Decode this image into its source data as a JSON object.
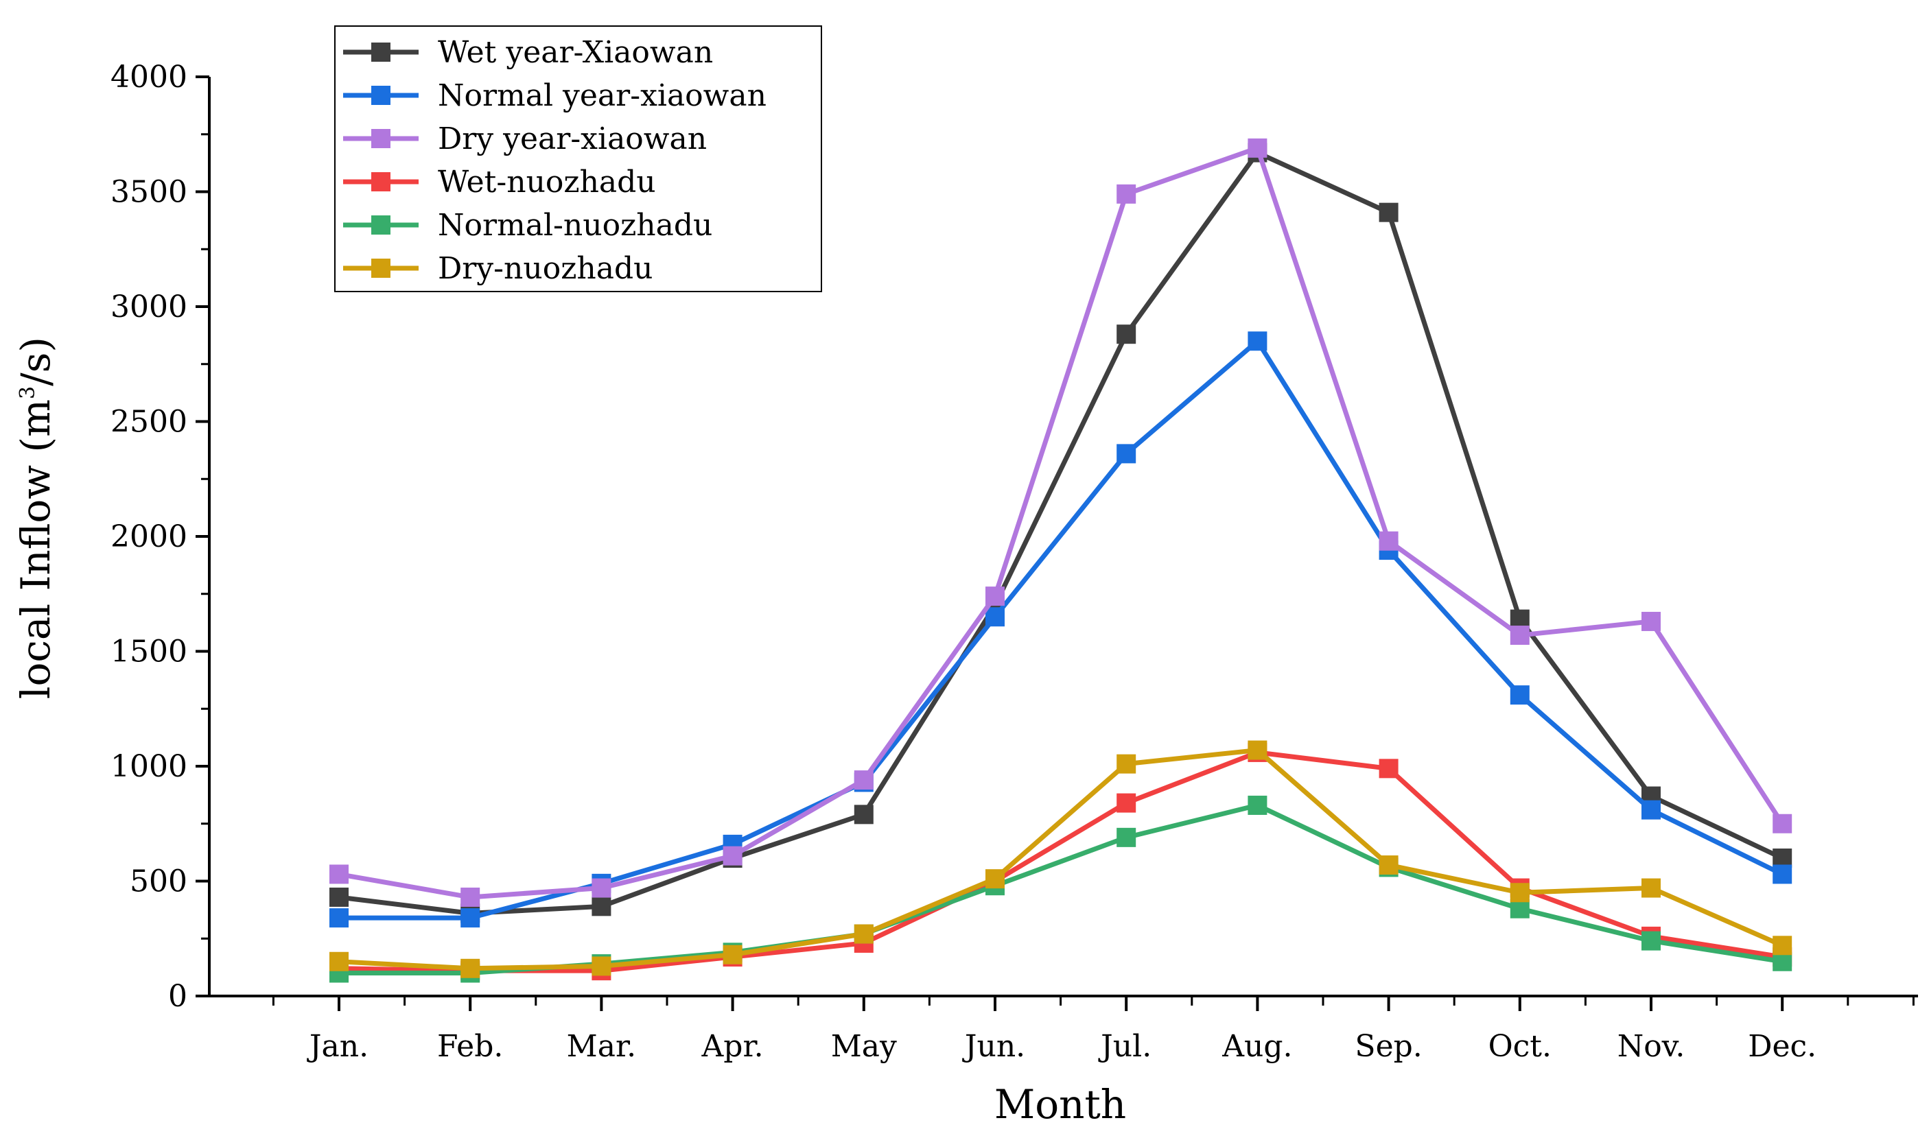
{
  "chart_data": {
    "type": "line",
    "title": "",
    "xlabel": "Month",
    "ylabel": "local Inflow (m",
    "ylabel_sup": "3",
    "ylabel_tail": "/s)",
    "categories": [
      "Jan.",
      "Feb.",
      "Mar.",
      "Apr.",
      "May",
      "Jun.",
      "Jul.",
      "Aug.",
      "Sep.",
      "Oct.",
      "Nov.",
      "Dec."
    ],
    "ylim": [
      0,
      4000
    ],
    "y_ticks": [
      0,
      500,
      1000,
      1500,
      2000,
      2500,
      3000,
      3500,
      4000
    ],
    "y_tick_labels": [
      "0",
      "500",
      "1000",
      "1500",
      "2000",
      "2500",
      "3000",
      "3500",
      "4000"
    ],
    "legend_position": "top-left",
    "grid": false,
    "series": [
      {
        "name": "Wet year-Xiaowan",
        "color": "#3f3f3f",
        "values": [
          430,
          360,
          390,
          600,
          790,
          1700,
          2880,
          3670,
          3410,
          1640,
          870,
          600
        ]
      },
      {
        "name": "Normal year-xiaowan",
        "color": "#1a6fdf",
        "values": [
          340,
          340,
          490,
          660,
          930,
          1650,
          2360,
          2850,
          1940,
          1310,
          810,
          530
        ]
      },
      {
        "name": "Dry year-xiaowan",
        "color": "#b177de",
        "values": [
          530,
          430,
          470,
          610,
          940,
          1740,
          3490,
          3690,
          1980,
          1570,
          1630,
          750
        ]
      },
      {
        "name": "Wet-nuozhadu",
        "color": "#f14040",
        "values": [
          120,
          110,
          110,
          170,
          230,
          500,
          840,
          1060,
          990,
          470,
          260,
          170
        ]
      },
      {
        "name": "Normal-nuozhadu",
        "color": "#37ad6b",
        "values": [
          100,
          100,
          140,
          190,
          270,
          480,
          690,
          830,
          560,
          380,
          240,
          150
        ]
      },
      {
        "name": "Dry-nuozhadu",
        "color": "#d19f0d",
        "values": [
          150,
          120,
          130,
          180,
          270,
          510,
          1010,
          1070,
          570,
          450,
          470,
          220
        ]
      }
    ]
  }
}
